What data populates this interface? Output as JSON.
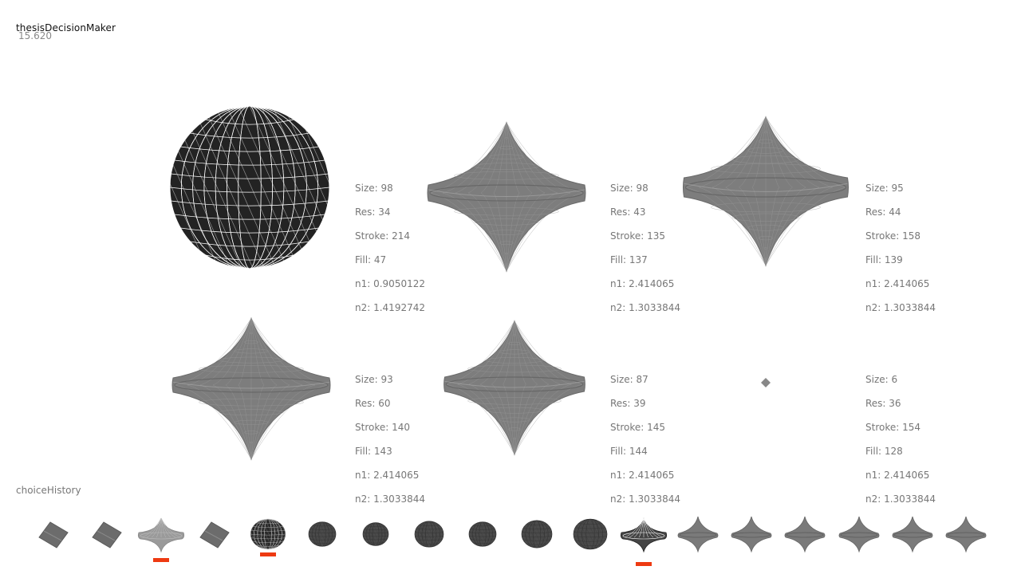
{
  "app": {
    "title": "thesisDecisionMaker",
    "fps": "15.620"
  },
  "shapes": [
    {
      "type": "blob",
      "size": "Size: 98",
      "res": "Res: 34",
      "stroke": "Stroke: 214",
      "fill": "Fill: 47",
      "n1": "n1: 0.9050122",
      "n2": "n2: 1.4192742"
    },
    {
      "type": "diamond",
      "size": "Size: 98",
      "res": "Res: 43",
      "stroke": "Stroke: 135",
      "fill": "Fill: 137",
      "n1": "n1: 2.414065",
      "n2": "n2: 1.3033844"
    },
    {
      "type": "diamond",
      "size": "Size: 95",
      "res": "Res: 44",
      "stroke": "Stroke: 158",
      "fill": "Fill: 139",
      "n1": "n1: 2.414065",
      "n2": "n2: 1.3033844"
    },
    {
      "type": "diamond",
      "size": "Size: 93",
      "res": "Res: 60",
      "stroke": "Stroke: 140",
      "fill": "Fill: 143",
      "n1": "n1: 2.414065",
      "n2": "n2: 1.3033844"
    },
    {
      "type": "diamond",
      "size": "Size: 87",
      "res": "Res: 39",
      "stroke": "Stroke: 145",
      "fill": "Fill: 144",
      "n1": "n1: 2.414065",
      "n2": "n2: 1.3033844"
    },
    {
      "type": "tiny",
      "size": "Size: 6",
      "res": "Res: 36",
      "stroke": "Stroke: 154",
      "fill": "Fill: 128",
      "n1": "n1: 2.414065",
      "n2": "n2: 1.3033844"
    }
  ],
  "history": {
    "label": "choiceHistory",
    "marker_color": "#ee3a12",
    "items": [
      {
        "kind": "flat",
        "selected": false
      },
      {
        "kind": "flat",
        "selected": false
      },
      {
        "kind": "spike",
        "selected": true
      },
      {
        "kind": "flat",
        "selected": false
      },
      {
        "kind": "blobdark",
        "selected": true
      },
      {
        "kind": "blob",
        "selected": false
      },
      {
        "kind": "blob",
        "selected": false
      },
      {
        "kind": "blob",
        "selected": false
      },
      {
        "kind": "blob",
        "selected": false
      },
      {
        "kind": "blob",
        "selected": false
      },
      {
        "kind": "blob",
        "selected": false
      },
      {
        "kind": "spikewire",
        "selected": true
      },
      {
        "kind": "diamond",
        "selected": false
      },
      {
        "kind": "diamond",
        "selected": false
      },
      {
        "kind": "diamond",
        "selected": false
      },
      {
        "kind": "diamond",
        "selected": false
      },
      {
        "kind": "diamond",
        "selected": false
      },
      {
        "kind": "diamond",
        "selected": false
      }
    ]
  }
}
